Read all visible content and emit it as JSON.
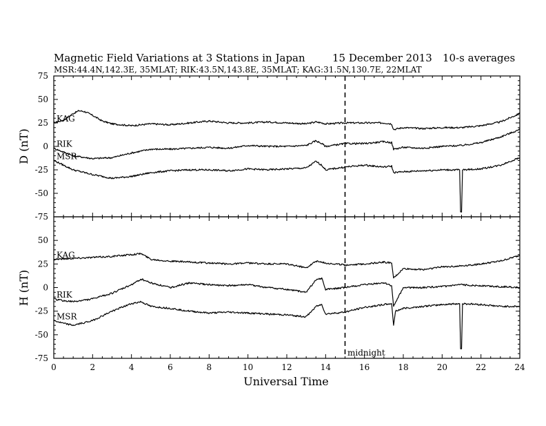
{
  "header": {
    "title": "Magnetic Field Variations at 3 Stations in Japan",
    "date": "15 December 2013",
    "averaging": "10-s averages",
    "stations": "MSR:44.4N,142.3E, 35MLAT;  RIK:43.5N,143.8E, 35MLAT;  KAG:31.5N,130.7E, 22MLAT"
  },
  "chart_data": [
    {
      "type": "line",
      "panel": "D",
      "ylabel": "D (nT)",
      "ylim": [
        -75,
        75
      ],
      "yticks": [
        75,
        50,
        25,
        0,
        -25,
        -50,
        -75
      ],
      "xlim": [
        0,
        24
      ],
      "xticks": [
        0,
        2,
        4,
        6,
        8,
        10,
        12,
        14,
        16,
        18,
        20,
        22,
        24
      ],
      "midnight_marker": 15,
      "series": [
        {
          "name": "KAG",
          "x": [
            0,
            0.5,
            1,
            1.3,
            1.6,
            2,
            2.5,
            3,
            3.5,
            4,
            5,
            6,
            7,
            8,
            9,
            10,
            11,
            12,
            13,
            13.5,
            13.8,
            14,
            15,
            16,
            17,
            17.4,
            17.5,
            18,
            19,
            20,
            21,
            22,
            23,
            24
          ],
          "y": [
            25,
            28,
            35,
            38,
            37,
            33,
            27,
            24,
            23,
            22,
            24,
            23,
            25,
            27,
            25,
            25,
            26,
            25,
            24,
            26,
            25,
            24,
            25,
            25,
            25,
            24,
            18,
            20,
            19,
            20,
            20,
            22,
            26,
            35
          ]
        },
        {
          "name": "RIK",
          "x": [
            0,
            0.5,
            1,
            2,
            3,
            4,
            5,
            6,
            7,
            8,
            9,
            10,
            11,
            12,
            13,
            13.5,
            13.8,
            14,
            15,
            16,
            17,
            17.4,
            17.5,
            18,
            19,
            20,
            21,
            22,
            23,
            24
          ],
          "y": [
            -2,
            -6,
            -10,
            -13,
            -12,
            -7,
            -3,
            -3,
            -2,
            -1,
            -2,
            1,
            0,
            0,
            1,
            6,
            3,
            0,
            3,
            3,
            5,
            4,
            -3,
            -1,
            -2,
            0,
            1,
            4,
            10,
            18
          ]
        },
        {
          "name": "MSR",
          "x": [
            0,
            0.5,
            1,
            2,
            3,
            4,
            5,
            6,
            7,
            8,
            9,
            10,
            11,
            12,
            13,
            13.5,
            13.8,
            14,
            15,
            16,
            17,
            17.4,
            17.5,
            18,
            19,
            20,
            20.9,
            20.95,
            21.0,
            21.05,
            22,
            23,
            24
          ],
          "y": [
            -15,
            -20,
            -25,
            -30,
            -34,
            -32,
            -28,
            -26,
            -25,
            -25,
            -26,
            -24,
            -25,
            -24,
            -23,
            -16,
            -20,
            -25,
            -22,
            -20,
            -22,
            -21,
            -28,
            -27,
            -26,
            -25,
            -25,
            -70,
            -70,
            -25,
            -24,
            -20,
            -12
          ]
        }
      ]
    },
    {
      "type": "line",
      "panel": "H",
      "ylabel": "H (nT)",
      "ylim": [
        -75,
        75
      ],
      "yticks": [
        50,
        25,
        0,
        -25,
        -50,
        -75
      ],
      "xlim": [
        0,
        24
      ],
      "xticks": [
        0,
        2,
        4,
        6,
        8,
        10,
        12,
        14,
        16,
        18,
        20,
        22,
        24
      ],
      "xlabel": "Universal Time",
      "midnight_label": "midnight",
      "midnight_marker": 15,
      "series": [
        {
          "name": "KAG",
          "x": [
            0,
            1,
            2,
            3,
            4,
            4.5,
            5,
            6,
            7,
            8,
            9,
            10,
            11,
            12,
            13,
            13.5,
            14,
            15,
            16,
            17,
            17.4,
            17.5,
            18,
            19,
            20,
            21,
            22,
            23,
            24
          ],
          "y": [
            30,
            31,
            32,
            33,
            35,
            36,
            30,
            28,
            27,
            26,
            25,
            26,
            25,
            25,
            21,
            28,
            26,
            24,
            25,
            27,
            26,
            10,
            20,
            19,
            22,
            23,
            25,
            28,
            34
          ]
        },
        {
          "name": "RIK",
          "x": [
            0,
            0.5,
            1,
            2,
            3,
            4,
            4.5,
            5,
            6,
            7,
            8,
            9,
            10,
            11,
            12,
            13,
            13.5,
            13.8,
            14,
            15,
            16,
            17,
            17.4,
            17.5,
            18,
            19,
            20,
            21,
            22,
            23,
            24
          ],
          "y": [
            -12,
            -14,
            -15,
            -12,
            -6,
            3,
            9,
            5,
            0,
            5,
            3,
            2,
            3,
            0,
            -2,
            -5,
            8,
            10,
            -2,
            0,
            3,
            5,
            2,
            -20,
            0,
            0,
            1,
            3,
            2,
            1,
            0
          ]
        },
        {
          "name": "MSR",
          "x": [
            0,
            0.5,
            1,
            2,
            3,
            4,
            4.5,
            5,
            6,
            7,
            8,
            9,
            10,
            11,
            12,
            13,
            13.5,
            13.8,
            14,
            15,
            16,
            17,
            17.4,
            17.5,
            17.6,
            18,
            19,
            20,
            20.9,
            20.95,
            21.0,
            21.05,
            22,
            23,
            24
          ],
          "y": [
            -35,
            -38,
            -40,
            -35,
            -25,
            -17,
            -15,
            -20,
            -22,
            -25,
            -27,
            -26,
            -27,
            -28,
            -29,
            -31,
            -20,
            -18,
            -28,
            -26,
            -21,
            -18,
            -17,
            -40,
            -25,
            -22,
            -20,
            -18,
            -17,
            -65,
            -65,
            -17,
            -18,
            -20,
            -20
          ]
        }
      ]
    }
  ]
}
